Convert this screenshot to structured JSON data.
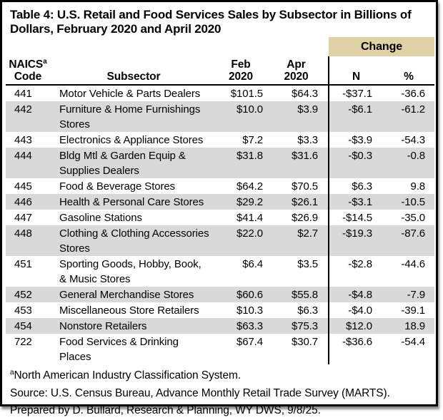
{
  "title": "Table 4: U.S. Retail and Food Services Sales by Subsector in Billions of\nDollars, February 2020 and April 2020",
  "colors": {
    "change_header_bg": "#e0d2a4",
    "row_stripe": "#d9d9d9",
    "border": "#000000",
    "text": "#000000"
  },
  "table": {
    "change_header": "Change",
    "columns": {
      "code_line1": "NAICS",
      "code_sup": "a",
      "code_line2": "Code",
      "subsector": "Subsector",
      "feb_line1": "Feb",
      "feb_line2": "2020",
      "apr_line1": "Apr",
      "apr_line2": "2020",
      "n": "N",
      "pct": "%"
    },
    "rows": [
      {
        "code": "441",
        "subsector": "Motor Vehicle & Parts Dealers",
        "feb": "$101.5",
        "apr": "$64.3",
        "n": "-$37.1",
        "pct": "-36.6"
      },
      {
        "code": "442",
        "subsector": "Furniture & Home Furnishings\nStores",
        "feb": "$10.0",
        "apr": "$3.9",
        "n": "-$6.1",
        "pct": "-61.2"
      },
      {
        "code": "443",
        "subsector": "Electronics & Appliance Stores",
        "feb": "$7.2",
        "apr": "$3.3",
        "n": "-$3.9",
        "pct": "-54.3"
      },
      {
        "code": "444",
        "subsector": "Bldg Mtl & Garden Equip &\nSupplies Dealers",
        "feb": "$31.8",
        "apr": "$31.6",
        "n": "-$0.3",
        "pct": "-0.8"
      },
      {
        "code": "445",
        "subsector": "Food & Beverage Stores",
        "feb": "$64.2",
        "apr": "$70.5",
        "n": "$6.3",
        "pct": "9.8"
      },
      {
        "code": "446",
        "subsector": "Health & Personal Care Stores",
        "feb": "$29.2",
        "apr": "$26.1",
        "n": "-$3.1",
        "pct": "-10.5"
      },
      {
        "code": "447",
        "subsector": "Gasoline Stations",
        "feb": "$41.4",
        "apr": "$26.9",
        "n": "-$14.5",
        "pct": "-35.0"
      },
      {
        "code": "448",
        "subsector": "Clothing & Clothing Accessories\nStores",
        "feb": "$22.0",
        "apr": "$2.7",
        "n": "-$19.3",
        "pct": "-87.6"
      },
      {
        "code": "451",
        "subsector": "Sporting Goods, Hobby, Book,\n& Music Stores",
        "feb": "$6.4",
        "apr": "$3.5",
        "n": "-$2.8",
        "pct": "-44.6"
      },
      {
        "code": "452",
        "subsector": "General Merchandise Stores",
        "feb": "$60.6",
        "apr": "$55.8",
        "n": "-$4.8",
        "pct": "-7.9"
      },
      {
        "code": "453",
        "subsector": "Miscellaneous Store Retailers",
        "feb": "$10.3",
        "apr": "$6.3",
        "n": "-$4.0",
        "pct": "-39.1"
      },
      {
        "code": "454",
        "subsector": "Nonstore Retailers",
        "feb": "$63.3",
        "apr": "$75.3",
        "n": "$12.0",
        "pct": "18.9"
      },
      {
        "code": "722",
        "subsector": "Food Services & Drinking\nPlaces",
        "feb": "$67.4",
        "apr": "$30.7",
        "n": "-$36.6",
        "pct": "-54.4"
      }
    ]
  },
  "footnotes": {
    "note_sup": "a",
    "note_text": "North American Industry Classification System.",
    "source": "Source: U.S. Census Bureau, Advance Monthly Retail Trade Survey (MARTS).",
    "prepared": "Prepared by D. Bullard, Research & Planning, WY DWS, 9/8/25."
  },
  "chart_data": {
    "type": "table",
    "title": "Table 4: U.S. Retail and Food Services Sales by Subsector in Billions of Dollars, February 2020 and April 2020",
    "columns": [
      "NAICS Code",
      "Subsector",
      "Feb 2020",
      "Apr 2020",
      "Change N",
      "Change %"
    ],
    "rows": [
      [
        "441",
        "Motor Vehicle & Parts Dealers",
        101.5,
        64.3,
        -37.1,
        -36.6
      ],
      [
        "442",
        "Furniture & Home Furnishings Stores",
        10.0,
        3.9,
        -6.1,
        -61.2
      ],
      [
        "443",
        "Electronics & Appliance Stores",
        7.2,
        3.3,
        -3.9,
        -54.3
      ],
      [
        "444",
        "Bldg Mtl & Garden Equip & Supplies Dealers",
        31.8,
        31.6,
        -0.3,
        -0.8
      ],
      [
        "445",
        "Food & Beverage Stores",
        64.2,
        70.5,
        6.3,
        9.8
      ],
      [
        "446",
        "Health & Personal Care Stores",
        29.2,
        26.1,
        -3.1,
        -10.5
      ],
      [
        "447",
        "Gasoline Stations",
        41.4,
        26.9,
        -14.5,
        -35.0
      ],
      [
        "448",
        "Clothing & Clothing Accessories Stores",
        22.0,
        2.7,
        -19.3,
        -87.6
      ],
      [
        "451",
        "Sporting Goods, Hobby, Book, & Music Stores",
        6.4,
        3.5,
        -2.8,
        -44.6
      ],
      [
        "452",
        "General Merchandise Stores",
        60.6,
        55.8,
        -4.8,
        -7.9
      ],
      [
        "453",
        "Miscellaneous Store Retailers",
        10.3,
        6.3,
        -4.0,
        -39.1
      ],
      [
        "454",
        "Nonstore Retailers",
        63.3,
        75.3,
        12.0,
        18.9
      ],
      [
        "722",
        "Food Services & Drinking Places",
        67.4,
        30.7,
        -36.6,
        -54.4
      ]
    ],
    "units": "billions of US dollars"
  }
}
